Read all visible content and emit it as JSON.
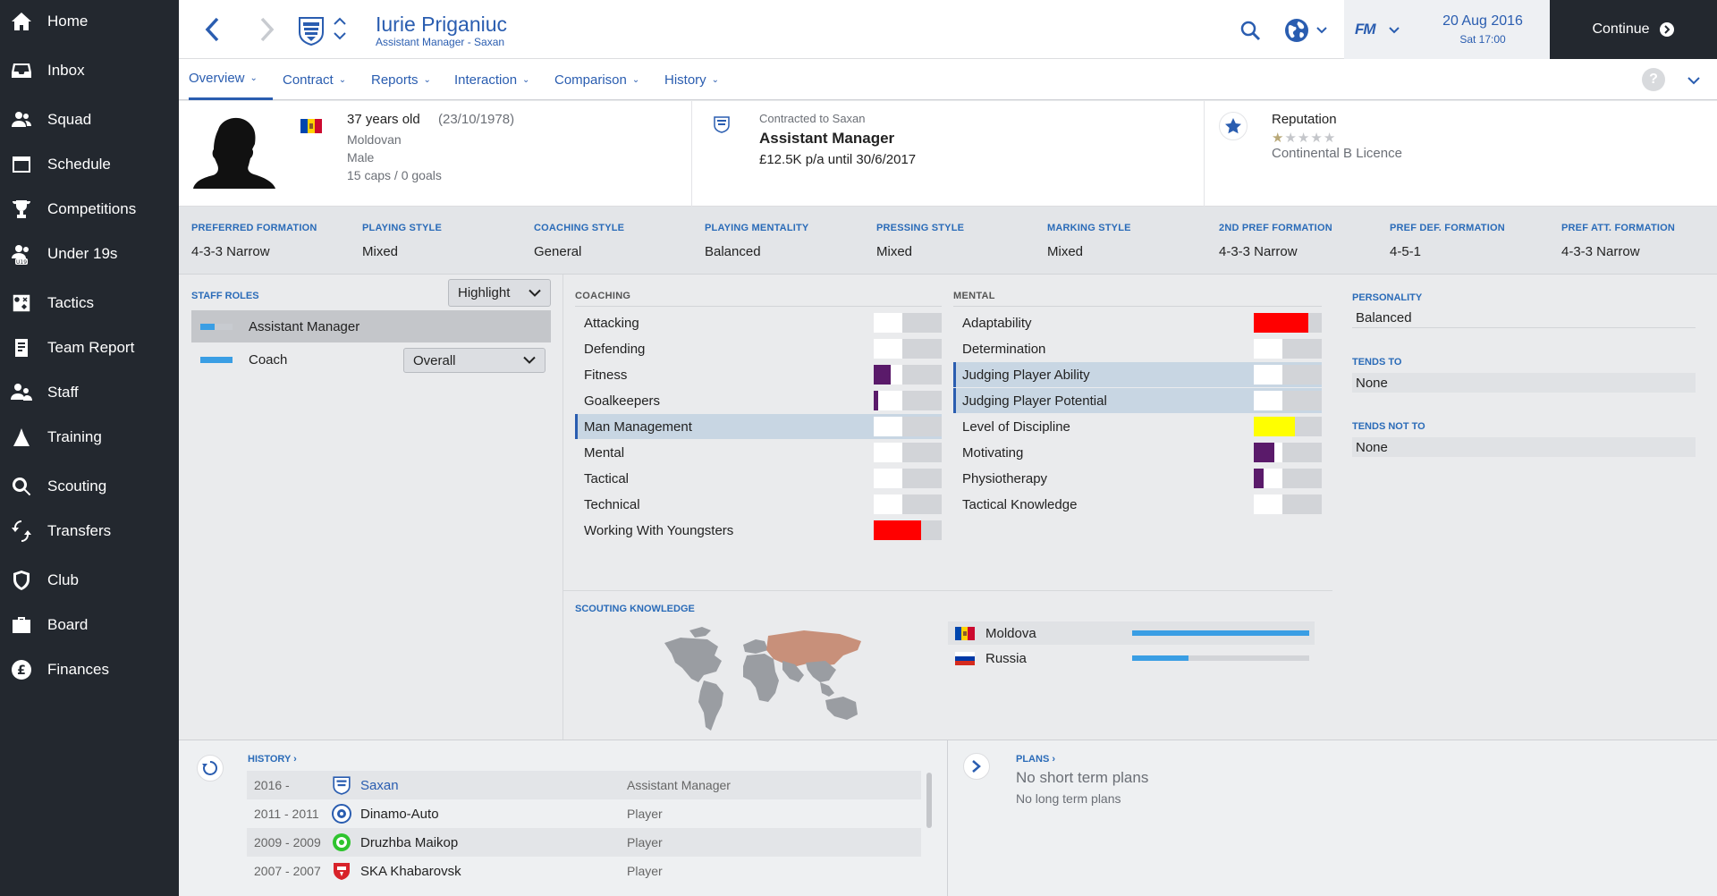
{
  "sidebar": {
    "items": [
      {
        "label": "Home",
        "icon": "home-icon"
      },
      {
        "label": "Inbox",
        "icon": "inbox-icon"
      },
      {
        "label": "Squad",
        "icon": "squad-icon"
      },
      {
        "label": "Schedule",
        "icon": "schedule-icon"
      },
      {
        "label": "Competitions",
        "icon": "trophy-icon"
      },
      {
        "label": "Under 19s",
        "icon": "under19-icon",
        "badge": "U19"
      },
      {
        "label": "Tactics",
        "icon": "tactics-icon"
      },
      {
        "label": "Team Report",
        "icon": "report-icon"
      },
      {
        "label": "Staff",
        "icon": "staff-icon"
      },
      {
        "label": "Training",
        "icon": "training-icon"
      },
      {
        "label": "Scouting",
        "icon": "search-icon"
      },
      {
        "label": "Transfers",
        "icon": "transfers-icon"
      },
      {
        "label": "Club",
        "icon": "shield-icon"
      },
      {
        "label": "Board",
        "icon": "briefcase-icon"
      },
      {
        "label": "Finances",
        "icon": "pound-icon",
        "glyph": "£"
      }
    ]
  },
  "header": {
    "name": "Iurie Priganiuc",
    "subtitle": "Assistant Manager - Saxan",
    "date": "20 Aug 2016",
    "time": "Sat 17:00",
    "fm_logo": "FM",
    "continue_label": "Continue"
  },
  "tabs": [
    "Overview",
    "Contract",
    "Reports",
    "Interaction",
    "Comparison",
    "History"
  ],
  "profile": {
    "age": "37 years old",
    "dob": "(23/10/1978)",
    "nationality": "Moldovan",
    "gender": "Male",
    "caps": "15 caps / 0 goals",
    "contracted_to": "Contracted to Saxan",
    "role": "Assistant Manager",
    "wage": "£12.5K p/a until 30/6/2017",
    "reputation_label": "Reputation",
    "reputation_stars": 1,
    "reputation_max": 5,
    "licence": "Continental B Licence"
  },
  "tactics": [
    {
      "label": "PREFERRED FORMATION",
      "value": "4-3-3 Narrow"
    },
    {
      "label": "PLAYING STYLE",
      "value": "Mixed"
    },
    {
      "label": "COACHING STYLE",
      "value": "General"
    },
    {
      "label": "PLAYING MENTALITY",
      "value": "Balanced"
    },
    {
      "label": "PRESSING STYLE",
      "value": "Mixed"
    },
    {
      "label": "MARKING STYLE",
      "value": "Mixed"
    },
    {
      "label": "2ND PREF FORMATION",
      "value": "4-3-3 Narrow"
    },
    {
      "label": "PREF DEF. FORMATION",
      "value": "4-5-1"
    },
    {
      "label": "PREF ATT. FORMATION",
      "value": "4-3-3 Narrow"
    }
  ],
  "staff_roles": {
    "label": "STAFF ROLES",
    "highlight_label": "Highlight",
    "roles": [
      {
        "name": "Assistant Manager",
        "level": 0.45
      },
      {
        "name": "Coach",
        "level": 1.0,
        "dropdown": "Overall"
      }
    ]
  },
  "coaching": {
    "label": "COACHING",
    "attrs": [
      {
        "name": "Attacking",
        "level": 0.0,
        "color": "#ffffff"
      },
      {
        "name": "Defending",
        "level": 0.0,
        "color": "#ffffff"
      },
      {
        "name": "Fitness",
        "level": 0.25,
        "color": "#5a1a6a"
      },
      {
        "name": "Goalkeepers",
        "level": 0.06,
        "color": "#5a1a6a"
      },
      {
        "name": "Man Management",
        "level": 0.0,
        "color": "#ffffff",
        "highlight": true
      },
      {
        "name": "Mental",
        "level": 0.0,
        "color": "#ffffff"
      },
      {
        "name": "Tactical",
        "level": 0.0,
        "color": "#ffffff"
      },
      {
        "name": "Technical",
        "level": 0.0,
        "color": "#ffffff"
      },
      {
        "name": "Working With Youngsters",
        "level": 0.7,
        "color": "#ff0000"
      }
    ]
  },
  "mental": {
    "label": "MENTAL",
    "attrs": [
      {
        "name": "Adaptability",
        "level": 0.8,
        "color": "#ff0000"
      },
      {
        "name": "Determination",
        "level": 0.0,
        "color": "#ffffff"
      },
      {
        "name": "Judging Player Ability",
        "level": 0.0,
        "color": "#ffffff",
        "highlight": true
      },
      {
        "name": "Judging Player Potential",
        "level": 0.0,
        "color": "#ffffff",
        "highlight": true
      },
      {
        "name": "Level of Discipline",
        "level": 0.6,
        "color": "#ffff00"
      },
      {
        "name": "Motivating",
        "level": 0.3,
        "color": "#5a1a6a"
      },
      {
        "name": "Physiotherapy",
        "level": 0.15,
        "color": "#5a1a6a"
      },
      {
        "name": "Tactical Knowledge",
        "level": 0.0,
        "color": "#ffffff"
      }
    ]
  },
  "personality": {
    "label": "PERSONALITY",
    "value": "Balanced",
    "tends_to_label": "TENDS TO",
    "tends_to": "None",
    "tends_not_to_label": "TENDS NOT TO",
    "tends_not_to": "None"
  },
  "scouting": {
    "label": "SCOUTING KNOWLEDGE",
    "countries": [
      {
        "name": "Moldova",
        "knowledge": 1.0
      },
      {
        "name": "Russia",
        "knowledge": 0.32
      }
    ]
  },
  "history": {
    "label": "HISTORY",
    "rows": [
      {
        "years": "2016 -",
        "club": "Saxan",
        "role": "Assistant Manager"
      },
      {
        "years": "2011 - 2011",
        "club": "Dinamo-Auto",
        "role": "Player"
      },
      {
        "years": "2009 - 2009",
        "club": "Druzhba Maikop",
        "role": "Player"
      },
      {
        "years": "2007 - 2007",
        "club": "SKA Khabarovsk",
        "role": "Player"
      }
    ]
  },
  "plans": {
    "label": "PLANS",
    "short_term": "No short term plans",
    "long_term": "No long term plans"
  },
  "colors": {
    "accent": "#2a5db0",
    "sidebar": "#23282f",
    "knowledge_bar": "#3a9ee4"
  }
}
